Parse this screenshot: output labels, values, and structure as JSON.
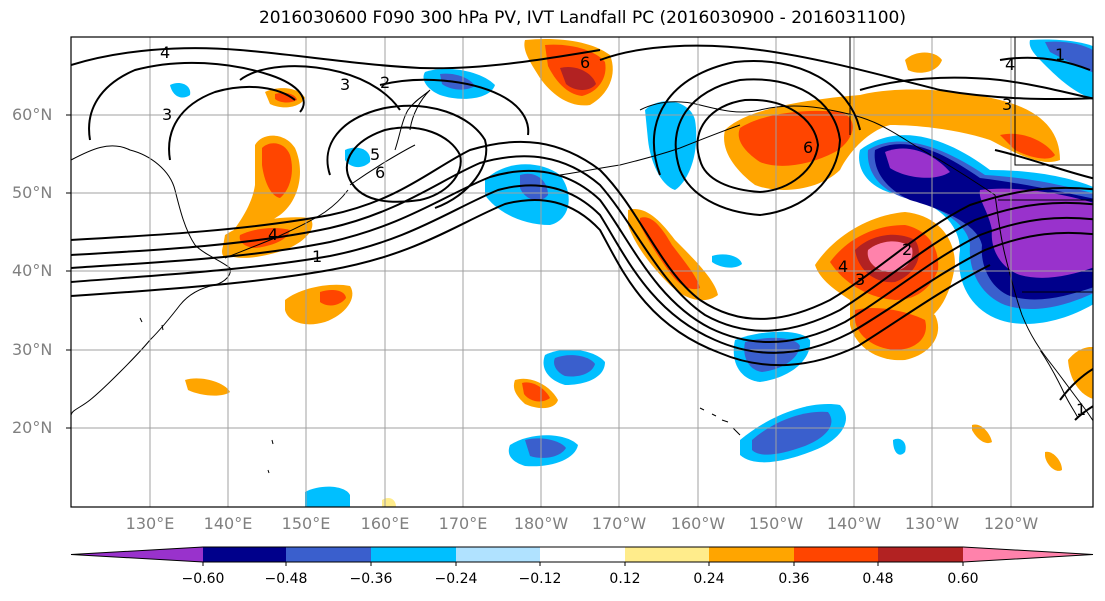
{
  "title": "2016030600 F090 300 hPa PV, IVT Landfall PC (2016030900 - 2016031100)",
  "lat_labels": [
    "60°N",
    "50°N",
    "40°N",
    "30°N",
    "20°N"
  ],
  "lon_labels": [
    "130°E",
    "140°E",
    "150°E",
    "160°E",
    "170°E",
    "180°W",
    "170°W",
    "160°W",
    "150°W",
    "140°W",
    "130°W",
    "120°W"
  ],
  "colorbar": {
    "colors": [
      "#9932cc",
      "#00008b",
      "#3a5fcd",
      "#00bfff",
      "#b0e2ff",
      "#ffffff",
      "#ffec8b",
      "#ffa500",
      "#ff4500",
      "#b22222",
      "#ff82ab"
    ],
    "tick_labels": [
      "−0.60",
      "−0.48",
      "−0.36",
      "−0.24",
      "−0.12",
      "0.12",
      "0.24",
      "0.36",
      "0.48",
      "0.60"
    ]
  },
  "contour_labels": [
    "4",
    "3",
    "2",
    "3",
    "6",
    "6",
    "5",
    "4",
    "1",
    "6",
    "4",
    "3",
    "2",
    "1",
    "3",
    "4",
    "1"
  ]
}
